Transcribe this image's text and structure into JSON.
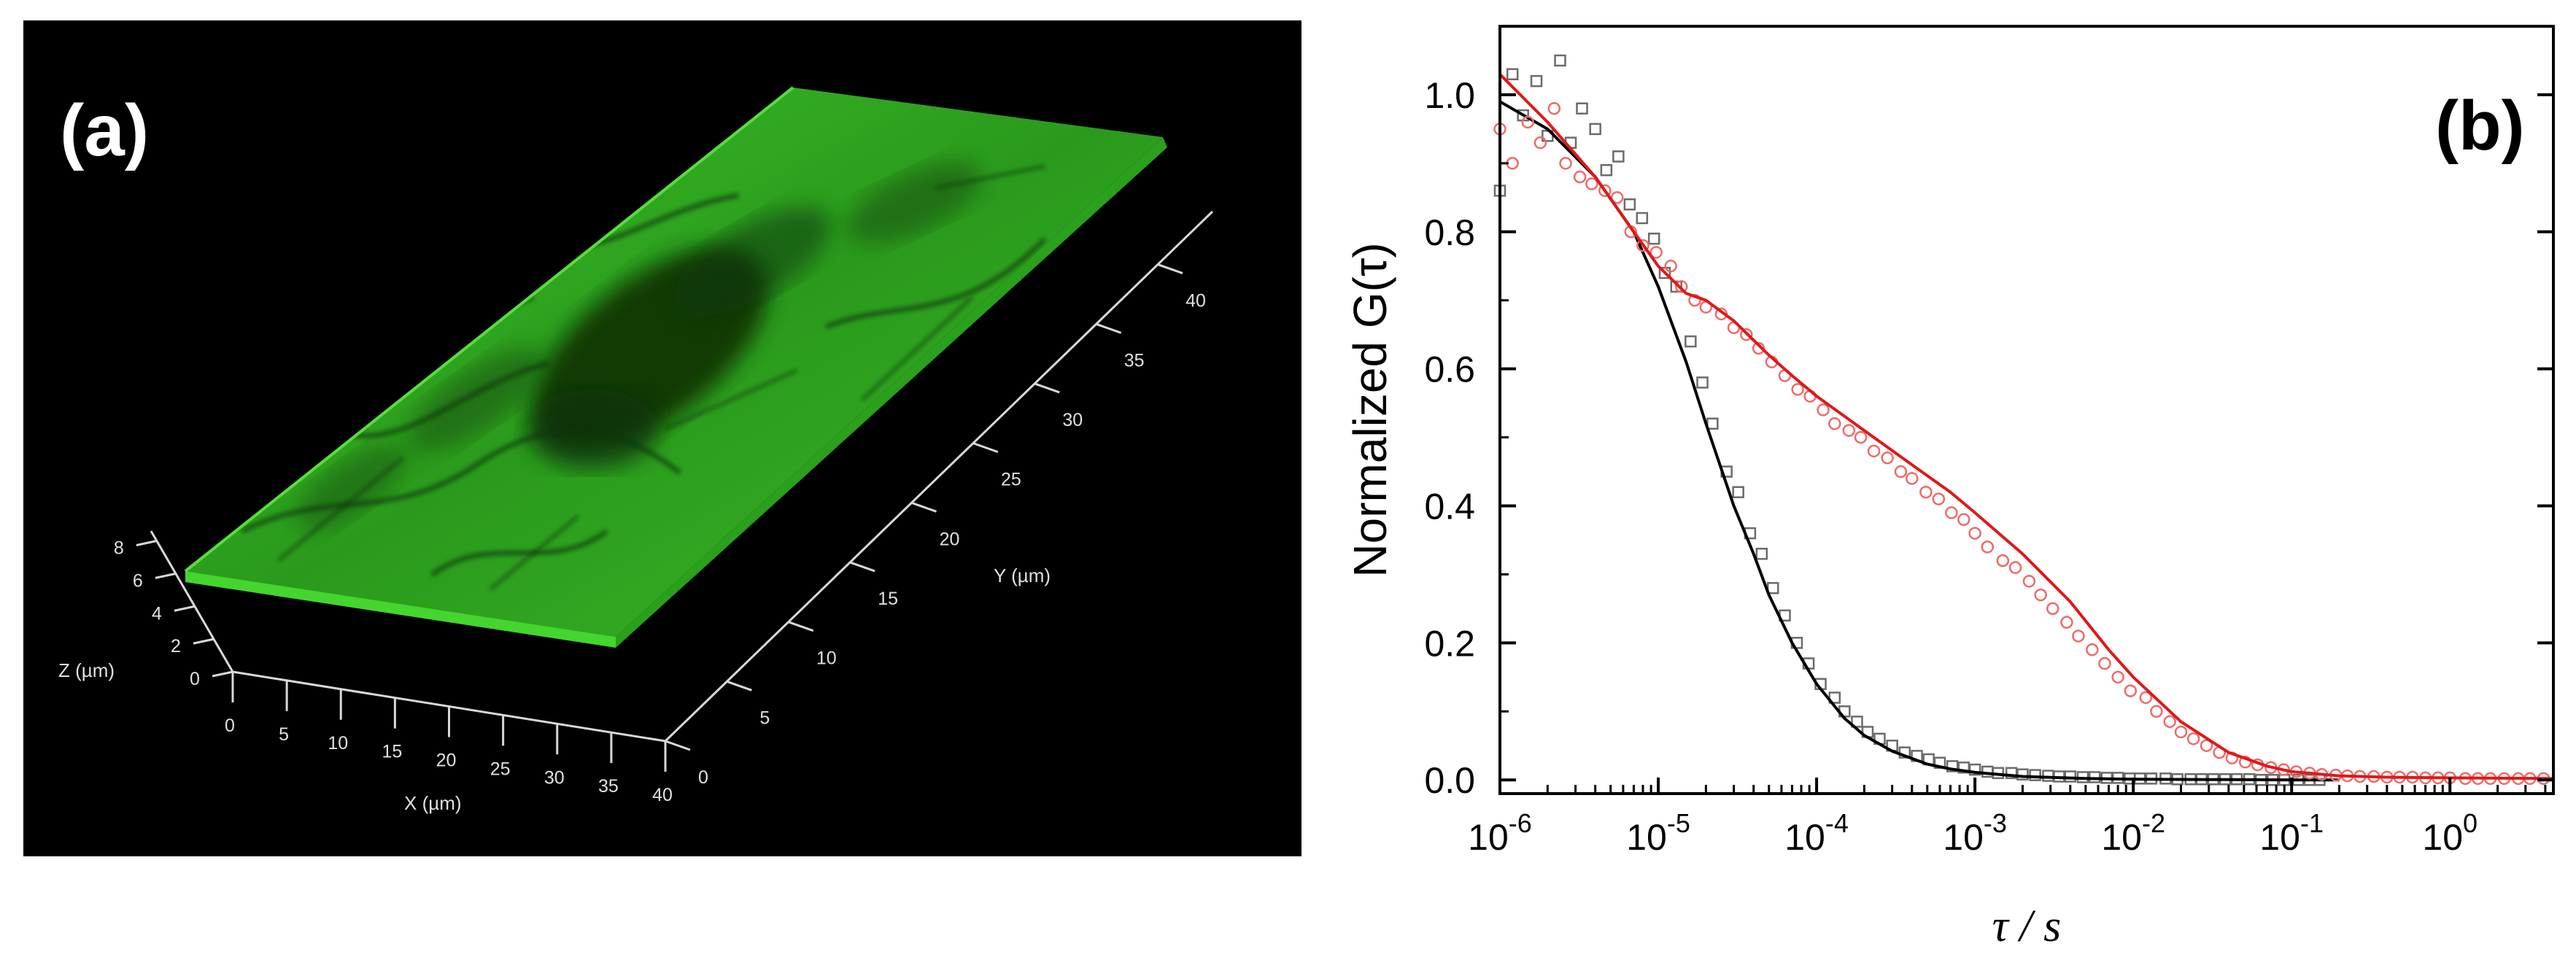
{
  "panel_a": {
    "label": "(a)",
    "x_axis": {
      "label": "X (µm)",
      "ticks": [
        "0",
        "5",
        "10",
        "15",
        "20",
        "25",
        "30",
        "35",
        "40"
      ]
    },
    "y_axis": {
      "label": "Y (µm)",
      "ticks": [
        "0",
        "5",
        "10",
        "15",
        "20",
        "25",
        "30",
        "35",
        "40"
      ]
    },
    "z_axis": {
      "label": "Z (µm)",
      "ticks": [
        "0",
        "2",
        "4",
        "6",
        "8"
      ]
    },
    "surface_color": "#2fae1f"
  },
  "chart_data": {
    "type": "scatter",
    "panel_label": "(b)",
    "xlabel": "τ / s",
    "ylabel": "Normalized G(τ)",
    "xscale": "log",
    "xlim": [
      1e-06,
      4.5
    ],
    "ylim": [
      -0.02,
      1.1
    ],
    "x_ticks": [
      {
        "base": "10",
        "exp": "-6",
        "value": 1e-06
      },
      {
        "base": "10",
        "exp": "-5",
        "value": 1e-05
      },
      {
        "base": "10",
        "exp": "-4",
        "value": 0.0001
      },
      {
        "base": "10",
        "exp": "-3",
        "value": 0.001
      },
      {
        "base": "10",
        "exp": "-2",
        "value": 0.01
      },
      {
        "base": "10",
        "exp": "-1",
        "value": 0.1
      },
      {
        "base": "10",
        "exp": "0",
        "value": 1
      }
    ],
    "y_ticks": [
      "0.0",
      "0.2",
      "0.4",
      "0.6",
      "0.8",
      "1.0"
    ],
    "series": [
      {
        "name": "black squares",
        "marker": "square",
        "color": "#6b6b6b",
        "fit_color": "#000000",
        "x": [
          1e-06,
          1.2e-06,
          1.4e-06,
          1.7e-06,
          2e-06,
          2.4e-06,
          2.8e-06,
          3.3e-06,
          4e-06,
          4.7e-06,
          5.6e-06,
          6.6e-06,
          7.9e-06,
          9.4e-06,
          1.1e-05,
          1.3e-05,
          1.6e-05,
          1.9e-05,
          2.2e-05,
          2.7e-05,
          3.2e-05,
          3.8e-05,
          4.5e-05,
          5.3e-05,
          6.3e-05,
          7.5e-05,
          8.9e-05,
          0.000106,
          0.00013,
          0.00015,
          0.00018,
          0.00021,
          0.00025,
          0.0003,
          0.00036,
          0.00043,
          0.00051,
          0.0006,
          0.00072,
          0.00085,
          0.001,
          0.0012,
          0.0014,
          0.0017,
          0.002,
          0.0024,
          0.0029,
          0.0034,
          0.004,
          0.0048,
          0.0057,
          0.0068,
          0.008,
          0.0095,
          0.011,
          0.013,
          0.016,
          0.019,
          0.023,
          0.027,
          0.032,
          0.038,
          0.045,
          0.054,
          0.064,
          0.076,
          0.09,
          0.11,
          0.13,
          0.15
        ],
        "y": [
          0.86,
          1.03,
          0.97,
          1.02,
          0.94,
          1.05,
          0.93,
          0.98,
          0.95,
          0.89,
          0.91,
          0.84,
          0.82,
          0.79,
          0.74,
          0.72,
          0.64,
          0.58,
          0.52,
          0.45,
          0.42,
          0.36,
          0.33,
          0.28,
          0.24,
          0.2,
          0.17,
          0.14,
          0.12,
          0.1,
          0.085,
          0.07,
          0.06,
          0.05,
          0.04,
          0.035,
          0.03,
          0.025,
          0.02,
          0.018,
          0.015,
          0.012,
          0.01,
          0.01,
          0.008,
          0.007,
          0.006,
          0.005,
          0.005,
          0.004,
          0.004,
          0.003,
          0.003,
          0.002,
          0.002,
          0.002,
          0.002,
          0.001,
          0.001,
          0.001,
          0.001,
          0.001,
          0.001,
          0.001,
          0.0,
          0.0,
          0.0,
          0.0,
          0.0,
          0.0
        ],
        "fit_x": [
          1e-06,
          2e-06,
          4e-06,
          7e-06,
          1e-05,
          1.5e-05,
          2e-05,
          3e-05,
          4e-05,
          5e-05,
          7e-05,
          0.0001,
          0.00015,
          0.0002,
          0.0003,
          0.0005,
          0.0007,
          0.001,
          0.002,
          0.005,
          0.01,
          0.03,
          0.1,
          0.2
        ],
        "fit_y": [
          0.99,
          0.95,
          0.88,
          0.8,
          0.72,
          0.61,
          0.52,
          0.4,
          0.33,
          0.27,
          0.2,
          0.14,
          0.09,
          0.065,
          0.042,
          0.023,
          0.016,
          0.011,
          0.005,
          0.002,
          0.001,
          0.0005,
          0.0,
          0.0
        ]
      },
      {
        "name": "red circles",
        "marker": "circle",
        "color": "#ee6a6a",
        "fit_color": "#e01818",
        "x": [
          1e-06,
          1.2e-06,
          1.5e-06,
          1.8e-06,
          2.2e-06,
          2.6e-06,
          3.2e-06,
          3.8e-06,
          4.6e-06,
          5.5e-06,
          6.7e-06,
          8e-06,
          9.7e-06,
          1.2e-05,
          1.4e-05,
          1.7e-05,
          2e-05,
          2.5e-05,
          3e-05,
          3.6e-05,
          4.3e-05,
          5.2e-05,
          6.3e-05,
          7.6e-05,
          9.1e-05,
          0.00011,
          0.00013,
          0.00016,
          0.00019,
          0.00023,
          0.00028,
          0.00034,
          0.0004,
          0.00049,
          0.00059,
          0.00071,
          0.00085,
          0.001,
          0.0012,
          0.0015,
          0.0018,
          0.0022,
          0.0026,
          0.0031,
          0.0038,
          0.0045,
          0.0055,
          0.0066,
          0.008,
          0.0096,
          0.012,
          0.014,
          0.017,
          0.02,
          0.024,
          0.029,
          0.035,
          0.042,
          0.051,
          0.061,
          0.074,
          0.089,
          0.107,
          0.13,
          0.155,
          0.19,
          0.225,
          0.27,
          0.33,
          0.4,
          0.48,
          0.58,
          0.7,
          0.84,
          1.0,
          1.25,
          1.5,
          1.8,
          2.2,
          2.7,
          3.2,
          3.9
        ],
        "y": [
          0.95,
          0.9,
          0.96,
          0.93,
          0.98,
          0.9,
          0.88,
          0.87,
          0.86,
          0.85,
          0.8,
          0.78,
          0.77,
          0.75,
          0.72,
          0.7,
          0.69,
          0.68,
          0.66,
          0.65,
          0.63,
          0.61,
          0.59,
          0.57,
          0.56,
          0.54,
          0.52,
          0.51,
          0.5,
          0.48,
          0.47,
          0.45,
          0.44,
          0.42,
          0.41,
          0.39,
          0.38,
          0.36,
          0.34,
          0.32,
          0.31,
          0.29,
          0.27,
          0.25,
          0.23,
          0.21,
          0.19,
          0.17,
          0.15,
          0.13,
          0.12,
          0.1,
          0.085,
          0.07,
          0.06,
          0.05,
          0.04,
          0.032,
          0.026,
          0.022,
          0.018,
          0.015,
          0.012,
          0.01,
          0.008,
          0.007,
          0.006,
          0.005,
          0.005,
          0.004,
          0.004,
          0.004,
          0.003,
          0.003,
          0.003,
          0.002,
          0.002,
          0.002,
          0.002,
          0.002,
          0.002,
          0.002
        ],
        "fit_x": [
          1e-06,
          2e-06,
          4e-06,
          7e-06,
          1e-05,
          1.5e-05,
          2e-05,
          3e-05,
          5e-05,
          7e-05,
          0.0001,
          0.0002,
          0.0004,
          0.0007,
          0.001,
          0.002,
          0.004,
          0.007,
          0.01,
          0.02,
          0.04,
          0.07,
          0.1,
          0.2,
          0.4,
          1,
          4.5
        ],
        "fit_y": [
          1.03,
          0.96,
          0.88,
          0.8,
          0.75,
          0.71,
          0.7,
          0.67,
          0.62,
          0.59,
          0.56,
          0.51,
          0.46,
          0.42,
          0.39,
          0.33,
          0.26,
          0.19,
          0.15,
          0.085,
          0.04,
          0.02,
          0.012,
          0.006,
          0.004,
          0.003,
          0.002
        ]
      }
    ]
  }
}
